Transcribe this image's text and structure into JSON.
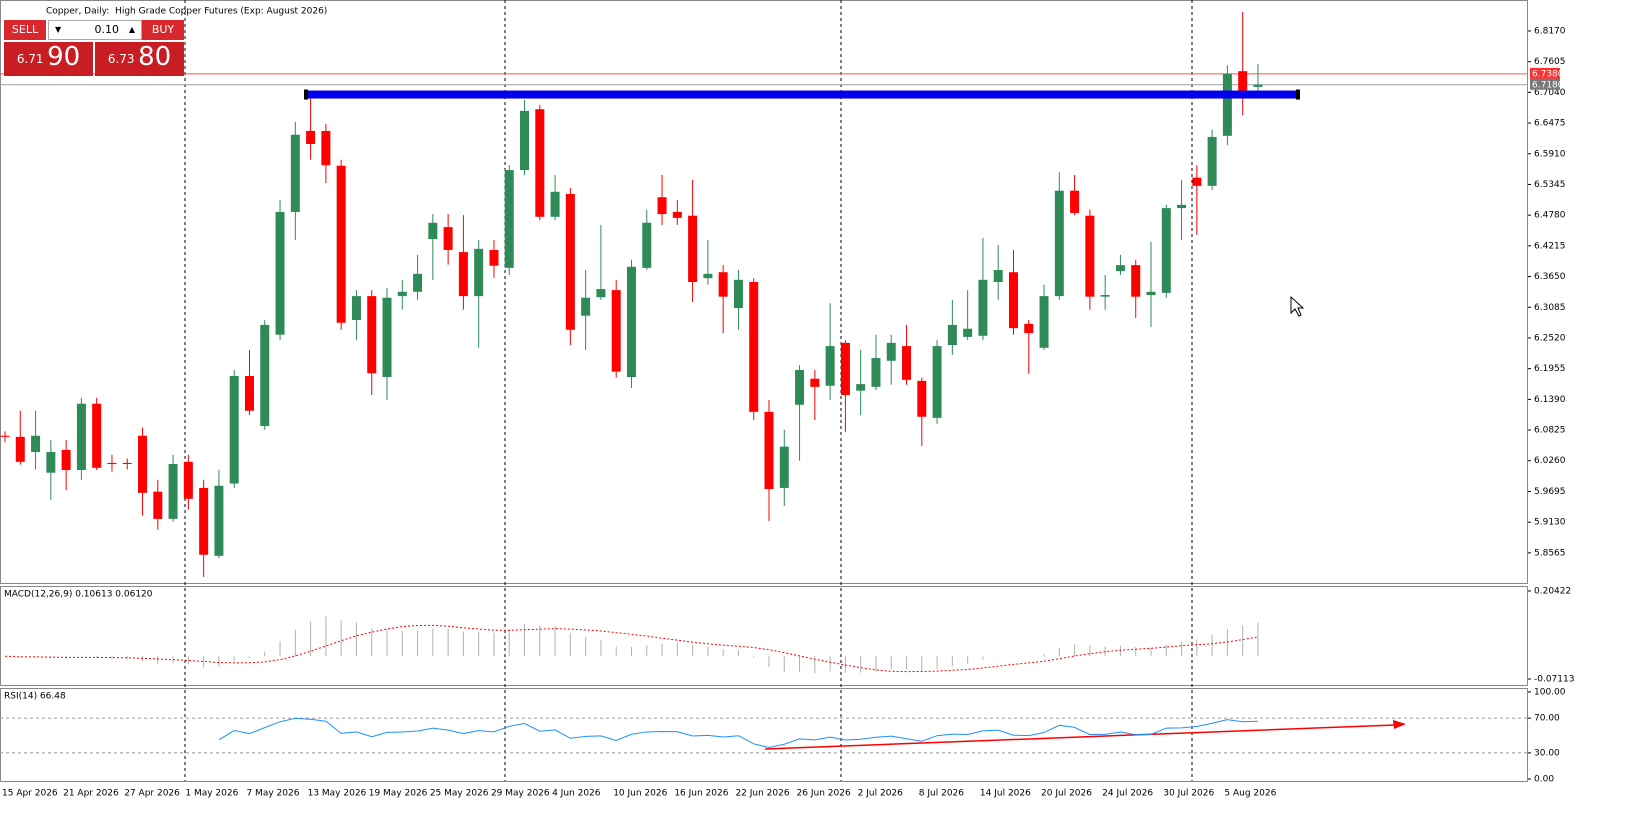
{
  "chart_data": {
    "type": "candlestick",
    "title": "Copper, Daily:  High Grade Copper Futures (Exp: August 2026)",
    "categories": [
      "15 Apr 2026",
      null,
      null,
      null,
      "21 Apr 2026",
      null,
      null,
      null,
      "27 Apr 2026",
      null,
      null,
      null,
      "1 May 2026",
      null,
      null,
      null,
      "7 May 2026",
      null,
      null,
      null,
      "13 May 2026",
      null,
      null,
      null,
      "19 May 2026",
      null,
      null,
      null,
      "25 May 2026",
      null,
      null,
      null,
      "29 May 2026",
      null,
      null,
      null,
      "4 Jun 2026",
      null,
      null,
      null,
      "10 Jun 2026",
      null,
      null,
      null,
      "16 Jun 2026",
      null,
      null,
      null,
      "22 Jun 2026",
      null,
      null,
      null,
      "26 Jun 2026",
      null,
      null,
      null,
      "2 Jul 2026",
      null,
      null,
      null,
      "8 Jul 2026",
      null,
      null,
      null,
      "14 Jul 2026",
      null,
      null,
      null,
      "20 Jul 2026",
      null,
      null,
      null,
      "24 Jul 2026",
      null,
      null,
      null,
      "30 Jul 2026",
      null,
      null,
      null,
      "5 Aug 2026",
      null,
      null
    ],
    "open": [
      6.072,
      6.07,
      6.042,
      6.004,
      6.046,
      6.009,
      6.131,
      6.022,
      6.022,
      6.072,
      5.969,
      5.919,
      6.024,
      5.976,
      5.851,
      5.984,
      6.182,
      6.09,
      6.258,
      6.484,
      6.633,
      6.633,
      6.569,
      6.285,
      6.329,
      6.18,
      6.329,
      6.337,
      6.434,
      6.456,
      6.41,
      6.329,
      6.414,
      6.381,
      6.561,
      6.673,
      6.475,
      6.517,
      6.293,
      6.327,
      6.34,
      6.18,
      6.381,
      6.511,
      6.484,
      6.477,
      6.362,
      6.373,
      6.307,
      6.355,
      6.116,
      5.976,
      6.129,
      6.177,
      6.164,
      6.243,
      6.155,
      6.162,
      6.21,
      6.237,
      6.173,
      6.105,
      6.239,
      6.254,
      6.256,
      6.355,
      6.373,
      6.278,
      6.234,
      6.329,
      6.523,
      6.477,
      6.328,
      6.375,
      6.386,
      6.331,
      6.335,
      6.491,
      6.547,
      6.532,
      6.624,
      6.743,
      6.714
    ],
    "high": [
      6.08,
      6.118,
      6.118,
      6.064,
      6.064,
      6.142,
      6.142,
      6.037,
      6.03,
      6.087,
      5.991,
      6.037,
      6.037,
      5.991,
      6.009,
      6.193,
      6.23,
      6.285,
      6.506,
      6.65,
      6.703,
      6.646,
      6.58,
      6.34,
      6.34,
      6.344,
      6.359,
      6.405,
      6.48,
      6.48,
      6.478,
      6.432,
      6.432,
      6.57,
      6.69,
      6.681,
      6.552,
      6.528,
      6.377,
      6.46,
      6.359,
      6.396,
      6.488,
      6.552,
      6.506,
      6.543,
      6.432,
      6.386,
      6.377,
      6.362,
      6.138,
      6.083,
      6.202,
      6.193,
      6.316,
      6.248,
      6.23,
      6.258,
      6.258,
      6.276,
      6.179,
      6.248,
      6.322,
      6.34,
      6.436,
      6.423,
      6.414,
      6.285,
      6.35,
      6.557,
      6.552,
      6.488,
      6.368,
      6.405,
      6.396,
      6.429,
      6.497,
      6.543,
      6.57,
      6.635,
      6.754,
      6.852,
      6.756
    ],
    "low": [
      6.06,
      6.019,
      6.01,
      5.954,
      5.972,
      5.991,
      6.009,
      6.006,
      6.01,
      5.925,
      5.899,
      5.914,
      5.936,
      5.812,
      5.847,
      5.976,
      6.11,
      6.083,
      6.248,
      6.432,
      6.58,
      6.537,
      6.267,
      6.248,
      6.147,
      6.138,
      6.304,
      6.322,
      6.359,
      6.387,
      6.304,
      6.234,
      6.363,
      6.368,
      6.552,
      6.469,
      6.469,
      6.239,
      6.23,
      6.322,
      6.179,
      6.16,
      6.377,
      6.46,
      6.46,
      6.318,
      6.35,
      6.261,
      6.267,
      6.101,
      5.915,
      5.943,
      6.026,
      6.101,
      6.138,
      6.079,
      6.11,
      6.156,
      6.166,
      6.166,
      6.053,
      6.094,
      6.221,
      6.248,
      6.248,
      6.322,
      6.258,
      6.186,
      6.23,
      6.322,
      6.478,
      6.304,
      6.304,
      6.368,
      6.289,
      6.272,
      6.326,
      6.432,
      6.442,
      6.524,
      6.607,
      6.662,
      6.699
    ],
    "close": [
      6.07,
      6.024,
      6.072,
      6.042,
      6.009,
      6.131,
      6.013,
      6.02,
      6.02,
      5.967,
      5.919,
      6.02,
      5.956,
      5.853,
      5.98,
      6.182,
      6.118,
      6.276,
      6.484,
      6.626,
      6.609,
      6.57,
      6.28,
      6.329,
      6.187,
      6.326,
      6.337,
      6.37,
      6.464,
      6.414,
      6.329,
      6.416,
      6.385,
      6.561,
      6.67,
      6.475,
      6.521,
      6.267,
      6.326,
      6.342,
      6.19,
      6.383,
      6.464,
      6.48,
      6.473,
      6.355,
      6.37,
      6.328,
      6.359,
      6.116,
      5.974,
      6.052,
      6.193,
      6.162,
      6.237,
      6.147,
      6.167,
      6.215,
      6.243,
      6.175,
      6.107,
      6.237,
      6.276,
      6.269,
      6.359,
      6.377,
      6.27,
      6.261,
      6.329,
      6.523,
      6.482,
      6.328,
      6.331,
      6.386,
      6.328,
      6.337,
      6.491,
      6.497,
      6.532,
      6.622,
      6.738,
      6.704,
      6.718
    ],
    "up_color": "#2e8b57",
    "down_color": "#ff0000",
    "ylim": [
      5.801,
      6.874
    ],
    "yticks": [
      {
        "value": 6.817,
        "label": "6.8170"
      },
      {
        "value": 6.7605,
        "label": "6.7605"
      },
      {
        "value": 6.704,
        "label": "6.7040"
      },
      {
        "value": 6.6475,
        "label": "6.6475"
      },
      {
        "value": 6.591,
        "label": "6.5910"
      },
      {
        "value": 6.5345,
        "label": "6.5345"
      },
      {
        "value": 6.478,
        "label": "6.4780"
      },
      {
        "value": 6.4215,
        "label": "6.4215"
      },
      {
        "value": 6.365,
        "label": "6.3650"
      },
      {
        "value": 6.3085,
        "label": "6.3085"
      },
      {
        "value": 6.252,
        "label": "6.2520"
      },
      {
        "value": 6.1955,
        "label": "6.1955"
      },
      {
        "value": 6.139,
        "label": "6.1390"
      },
      {
        "value": 6.0825,
        "label": "6.0825"
      },
      {
        "value": 6.026,
        "label": "6.0260"
      },
      {
        "value": 5.9695,
        "label": "5.9695"
      },
      {
        "value": 5.913,
        "label": "5.9130"
      },
      {
        "value": 5.8565,
        "label": "5.8565"
      }
    ],
    "level": 6.7,
    "level_color": "#0000ee",
    "ask": {
      "value": 6.738,
      "label": "6.7380"
    },
    "bid": {
      "value": 6.718,
      "label": "6.7180"
    },
    "macd": {
      "label": "MACD(12,26,9) 0.10613 0.06120",
      "fast": 12,
      "slow": 26,
      "signal": 9,
      "ylim": [
        -0.0899,
        0.2198
      ],
      "yticks": [
        0.20422,
        -0.07113
      ]
    },
    "rsi": {
      "label": "RSI(14) 66.48",
      "period": 14,
      "color": "#1e90ff",
      "ylim": [
        -2.3,
        104.6
      ],
      "yticks": [
        {
          "value": 100,
          "label": "100.00"
        },
        {
          "value": 70,
          "label": "70.00"
        },
        {
          "value": 30,
          "label": "30.00"
        },
        {
          "value": 0,
          "label": "0.00"
        }
      ]
    },
    "trade_panel": {
      "sell": "SELL",
      "buy": "BUY",
      "lot": "0.10",
      "sell_big": "6.71",
      "sell_small": "90",
      "buy_big": "6.73",
      "buy_small": "80"
    }
  }
}
